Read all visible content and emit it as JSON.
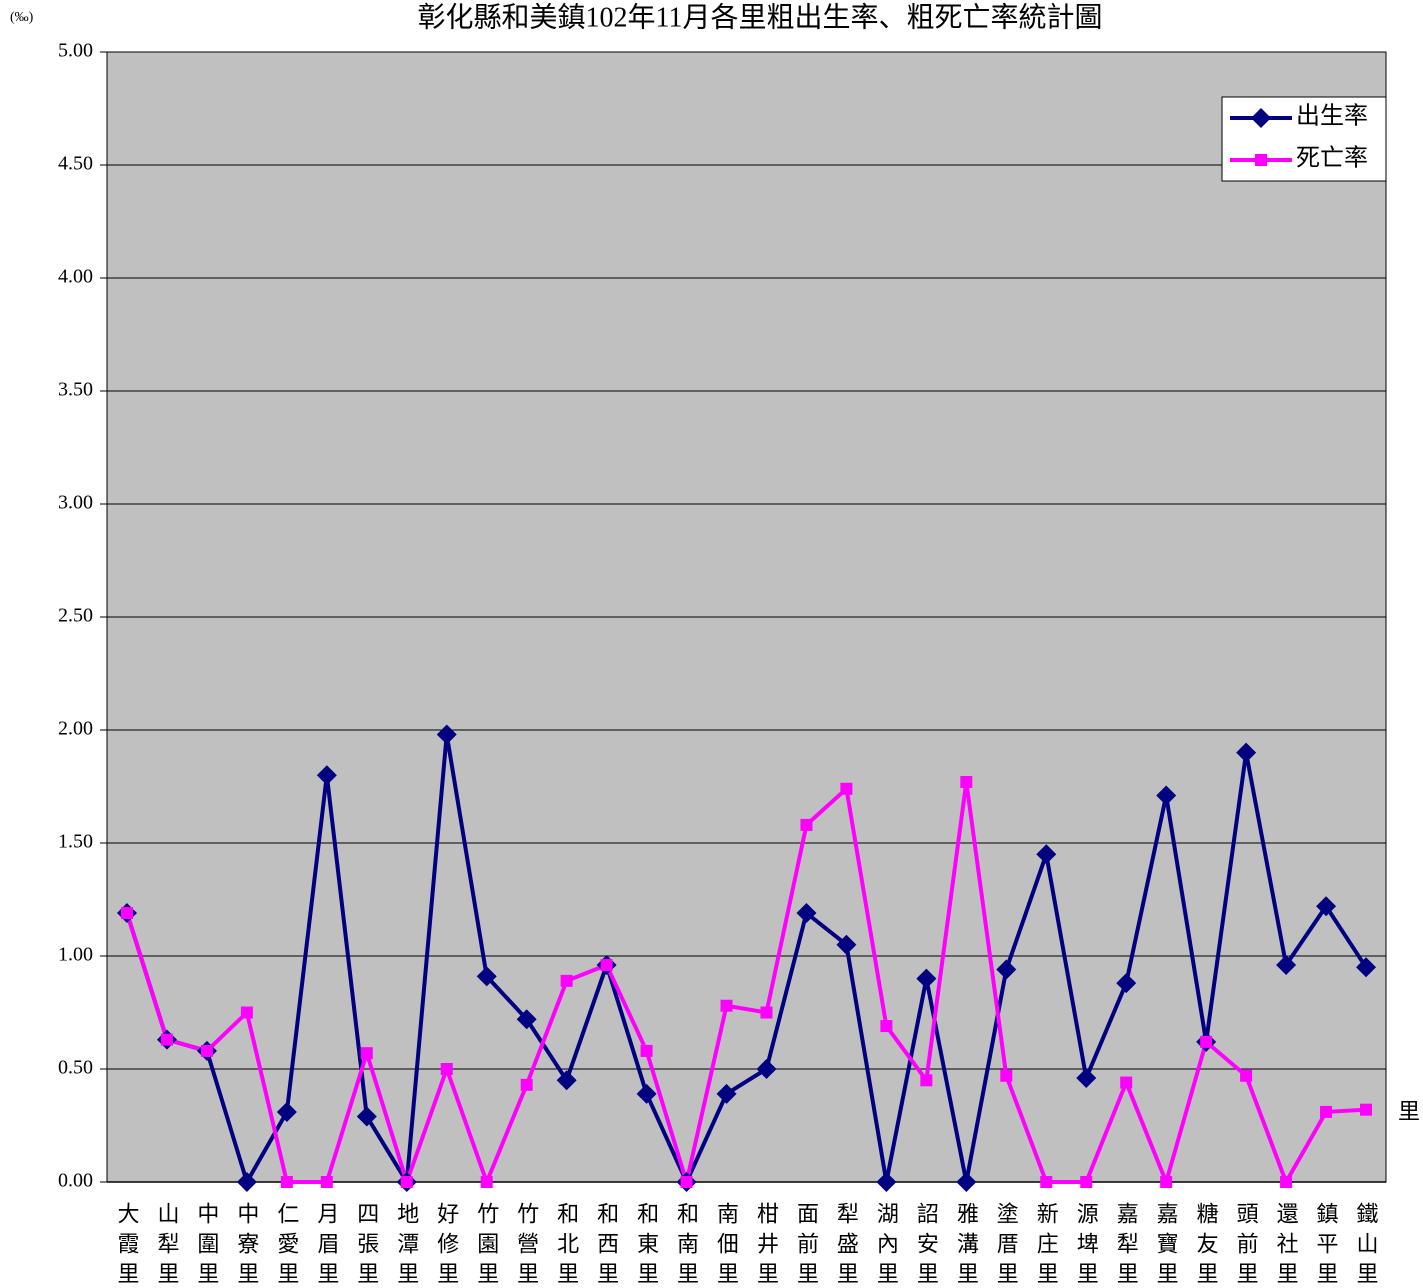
{
  "chart_data": {
    "type": "line",
    "title": "彰化縣和美鎮102年11月各里粗出生率、粗死亡率統計圖",
    "y_label": "(‰)",
    "x_label": "里",
    "categories": [
      "大霞里",
      "山犁里",
      "中圍里",
      "中寮里",
      "仁愛里",
      "月眉里",
      "四張里",
      "地潭里",
      "好修里",
      "竹園里",
      "竹營里",
      "和北里",
      "和西里",
      "和東里",
      "和南里",
      "南佃里",
      "柑井里",
      "面前里",
      "犁盛里",
      "湖內里",
      "詔安里",
      "雅溝里",
      "塗厝里",
      "新庄里",
      "源埤里",
      "嘉犁里",
      "嘉寶里",
      "糖友里",
      "頭前里",
      "還社里",
      "鎮平里",
      "鐵山里"
    ],
    "series": [
      {
        "name": "出生率",
        "color": "#000080",
        "marker": "diamond",
        "values": [
          1.19,
          0.63,
          0.58,
          0,
          0.31,
          1.8,
          0.29,
          0,
          1.98,
          0.91,
          0.72,
          0.45,
          0.96,
          0.39,
          0,
          0.39,
          0.5,
          1.19,
          1.05,
          0,
          0.9,
          0,
          0.94,
          1.45,
          0.46,
          0.88,
          1.71,
          0.62,
          1.9,
          0.96,
          1.22,
          0.95
        ]
      },
      {
        "name": "死亡率",
        "color": "#ff00ff",
        "marker": "square",
        "values": [
          1.19,
          0.63,
          0.58,
          0.75,
          0,
          0,
          0.57,
          0,
          0.5,
          0,
          0.43,
          0.89,
          0.96,
          0.58,
          0,
          0.78,
          0.75,
          1.58,
          1.74,
          0.69,
          0.45,
          1.77,
          0.47,
          0,
          0,
          0.44,
          0,
          0.62,
          0.47,
          0,
          0.31,
          0.32
        ]
      }
    ],
    "ylim": [
      0,
      5
    ],
    "yticks": [
      {
        "value": 0,
        "label": "0.00"
      },
      {
        "value": 0.5,
        "label": "0.50"
      },
      {
        "value": 1,
        "label": "1.00"
      },
      {
        "value": 1.5,
        "label": "1.50"
      },
      {
        "value": 2,
        "label": "2.00"
      },
      {
        "value": 2.5,
        "label": "2.50"
      },
      {
        "value": 3,
        "label": "3.00"
      },
      {
        "value": 3.5,
        "label": "3.50"
      },
      {
        "value": 4,
        "label": "4.00"
      },
      {
        "value": 4.5,
        "label": "4.50"
      },
      {
        "value": 5,
        "label": "5.00"
      }
    ],
    "grid": true,
    "legend": "top-right",
    "plot_background": "#c0c0c0"
  }
}
